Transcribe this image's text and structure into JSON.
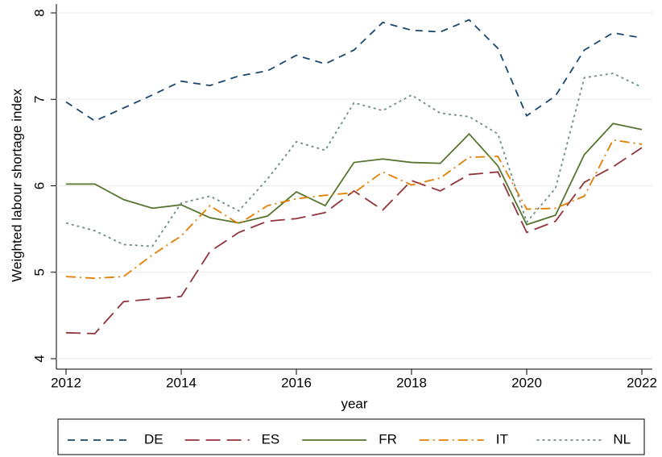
{
  "chart_data": {
    "type": "line",
    "x_label": "year",
    "y_label": "Weighted labour shortage index",
    "x": [
      2012,
      2012.5,
      2013,
      2013.5,
      2014,
      2014.5,
      2015,
      2015.5,
      2016,
      2016.5,
      2017,
      2017.5,
      2018,
      2018.5,
      2019,
      2019.5,
      2020,
      2020.5,
      2021,
      2021.5,
      2022
    ],
    "series": [
      {
        "name": "DE",
        "color": "#1a476f",
        "values": [
          6.97,
          6.75,
          6.9,
          7.05,
          7.21,
          7.16,
          7.27,
          7.33,
          7.51,
          7.41,
          7.57,
          7.89,
          7.8,
          7.78,
          7.92,
          7.59,
          6.81,
          7.04,
          7.57,
          7.77,
          7.71
        ]
      },
      {
        "name": "ES",
        "color": "#90353b",
        "values": [
          4.3,
          4.29,
          4.66,
          4.69,
          4.72,
          5.24,
          5.46,
          5.59,
          5.62,
          5.69,
          5.94,
          5.72,
          6.06,
          5.94,
          6.13,
          6.16,
          5.46,
          5.59,
          6.04,
          6.22,
          6.44
        ]
      },
      {
        "name": "FR",
        "color": "#55752f",
        "values": [
          6.02,
          6.02,
          5.84,
          5.74,
          5.78,
          5.63,
          5.57,
          5.65,
          5.93,
          5.77,
          6.27,
          6.31,
          6.27,
          6.26,
          6.6,
          6.23,
          5.55,
          5.66,
          6.36,
          6.72,
          6.65
        ]
      },
      {
        "name": "IT",
        "color": "#e37e00",
        "values": [
          4.95,
          4.93,
          4.95,
          5.2,
          5.42,
          5.77,
          5.56,
          5.77,
          5.85,
          5.89,
          5.92,
          6.16,
          6.01,
          6.09,
          6.33,
          6.34,
          5.73,
          5.74,
          5.88,
          6.53,
          6.48
        ]
      },
      {
        "name": "NL",
        "color": "#6e8e84",
        "values": [
          5.57,
          5.48,
          5.32,
          5.3,
          5.8,
          5.88,
          5.71,
          6.08,
          6.51,
          6.41,
          6.96,
          6.87,
          7.05,
          6.84,
          6.8,
          6.6,
          5.58,
          5.97,
          7.25,
          7.3,
          7.14
        ]
      }
    ],
    "xlim": [
      2012,
      2022
    ],
    "xticks": [
      2012,
      2014,
      2016,
      2018,
      2020,
      2022
    ],
    "ylim": [
      4,
      8
    ],
    "yticks": [
      4,
      5,
      6,
      7,
      8
    ],
    "grid": true,
    "legend": "bottom"
  }
}
